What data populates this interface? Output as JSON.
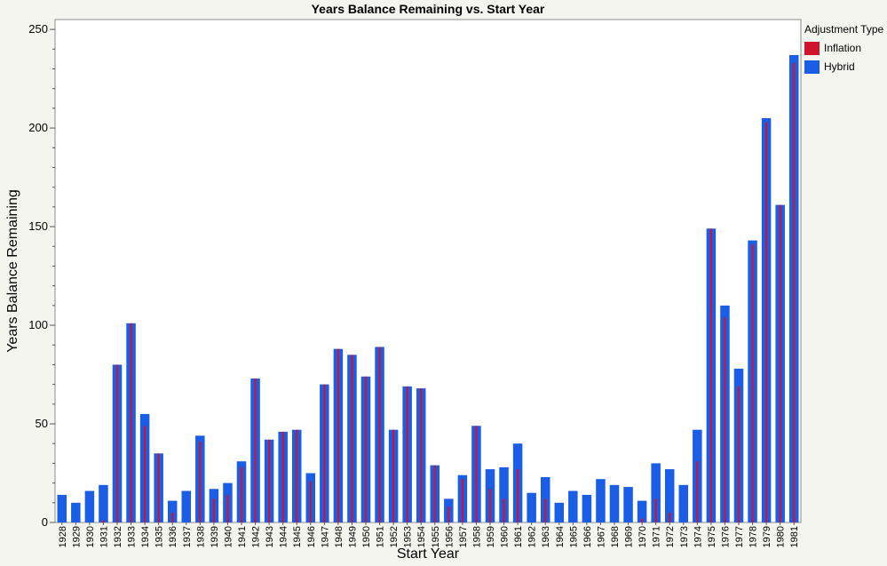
{
  "chart_data": {
    "type": "bar",
    "title": "Years Balance Remaining vs. Start Year",
    "xlabel": "Start Year",
    "ylabel": "Years Balance Remaining",
    "ylim": [
      0,
      255
    ],
    "yticks": [
      0,
      50,
      100,
      150,
      200,
      250
    ],
    "grid": false,
    "legend": {
      "title": "Adjustment Type",
      "placement": "right"
    },
    "categories": [
      "1928",
      "1929",
      "1930",
      "1931",
      "1932",
      "1933",
      "1934",
      "1935",
      "1936",
      "1937",
      "1938",
      "1939",
      "1940",
      "1941",
      "1942",
      "1943",
      "1944",
      "1945",
      "1946",
      "1947",
      "1948",
      "1949",
      "1950",
      "1951",
      "1952",
      "1953",
      "1954",
      "1955",
      "1956",
      "1957",
      "1958",
      "1959",
      "1960",
      "1961",
      "1962",
      "1963",
      "1964",
      "1965",
      "1966",
      "1967",
      "1968",
      "1969",
      "1970",
      "1971",
      "1972",
      "1973",
      "1974",
      "1975",
      "1976",
      "1977",
      "1978",
      "1979",
      "1980",
      "1981"
    ],
    "series": [
      {
        "name": "Inflation",
        "color": "#d0142c",
        "values": [
          0,
          0,
          0,
          1,
          80,
          101,
          49,
          35,
          5,
          0,
          41,
          12,
          14,
          28,
          73,
          42,
          46,
          47,
          21,
          70,
          88,
          85,
          74,
          89,
          47,
          69,
          68,
          29,
          8,
          22,
          49,
          17,
          12,
          27,
          0,
          12,
          0,
          0,
          0,
          0,
          0,
          0,
          2,
          12,
          5,
          0,
          31,
          149,
          104,
          69,
          141,
          203,
          161,
          233
        ]
      },
      {
        "name": "Hybrid",
        "color": "#1a5ee8",
        "values": [
          14,
          10,
          16,
          19,
          80,
          101,
          55,
          35,
          11,
          16,
          44,
          17,
          20,
          31,
          73,
          42,
          46,
          47,
          25,
          70,
          88,
          85,
          74,
          89,
          47,
          69,
          68,
          29,
          12,
          24,
          49,
          27,
          28,
          40,
          15,
          23,
          10,
          16,
          14,
          22,
          19,
          18,
          11,
          30,
          27,
          19,
          47,
          149,
          110,
          78,
          143,
          205,
          161,
          237
        ]
      }
    ]
  }
}
